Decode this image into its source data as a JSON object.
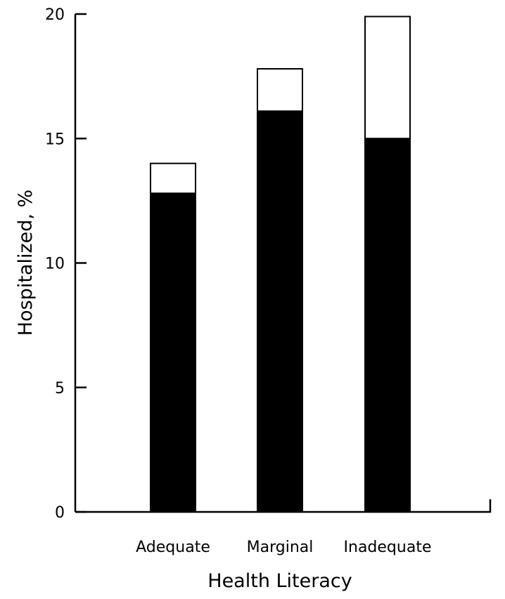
{
  "chart_data": {
    "type": "bar",
    "stacked": true,
    "title": "",
    "xlabel": "Health Literacy",
    "ylabel": "Hospitalized, %",
    "categories": [
      "Adequate",
      "Marginal",
      "Inadequate"
    ],
    "series": [
      {
        "values": [
          12.8,
          16.1,
          15.0
        ],
        "color": "#000000"
      },
      {
        "values": [
          1.2,
          1.7,
          4.9
        ],
        "color": "#ffffff"
      }
    ],
    "ylim": [
      0,
      20
    ],
    "yticks": [
      0,
      5,
      10,
      15,
      20
    ],
    "grid": false,
    "legend": "none"
  }
}
